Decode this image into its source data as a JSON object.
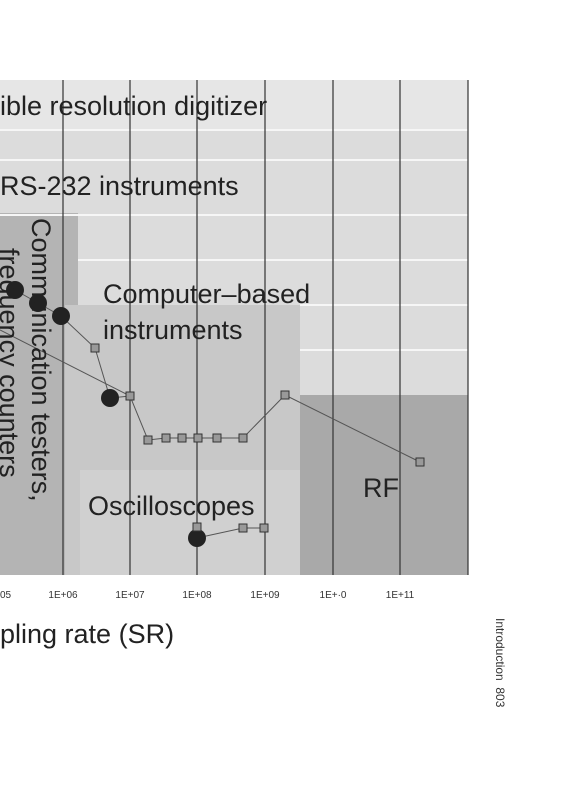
{
  "chart": {
    "region_labels": [
      "ible resolution digitizer",
      "RS-232 instruments",
      "Communication testers,",
      "frequency counters",
      "Computer–based",
      "instruments",
      "Oscilloscopes",
      "RF"
    ],
    "x_tick_labels": [
      "05",
      "1E+06",
      "1E+07",
      "1E+08",
      "1E+09",
      "1E+·0",
      "1E+11"
    ],
    "x_axis_label": "pling rate (SR)"
  },
  "footer": "Introduction  803"
}
